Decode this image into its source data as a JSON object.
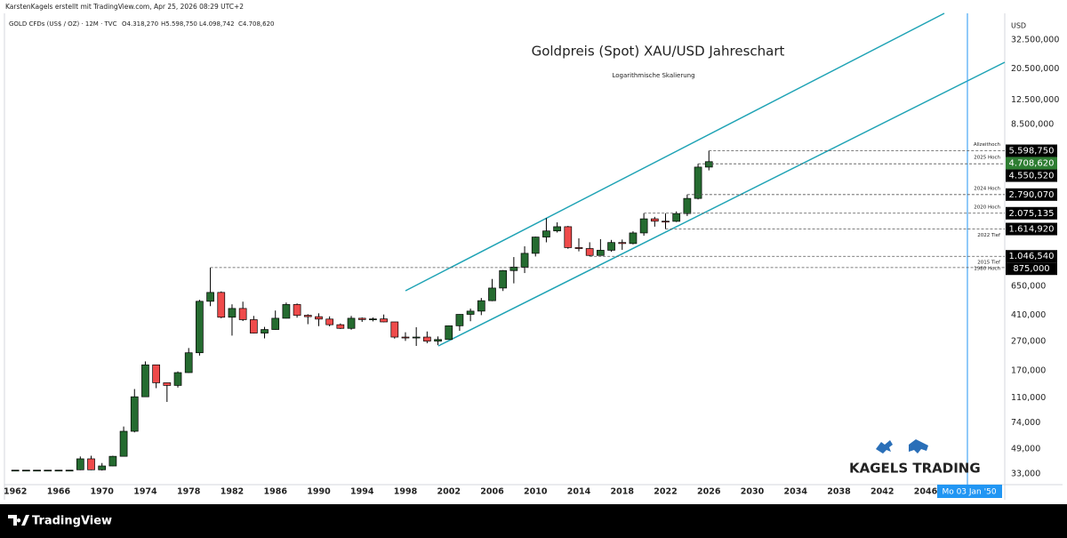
{
  "header": "KarstenKagels erstellt mit TradingView.com, Apr 25, 2026 08:29 UTC+2",
  "footer": {
    "brand": "TradingView"
  },
  "logo": "KAGELS TRADING",
  "chart_data": {
    "type": "candlestick",
    "title": "Goldpreis (Spot) XAU/USD Jahreschart",
    "subtitle": "Logarithmische Skalierung",
    "symbol": "GOLD CFDs (US$ / OZ) · 12M · TVC",
    "ohlc_labels": [
      "O4.318,270",
      "H5.598,750",
      "L4.098,742",
      "C4.708,620"
    ],
    "currency": "USD",
    "log_scale": true,
    "grid": false,
    "up_color": "#256b30",
    "down_color": "#ef4b4b",
    "x": [
      1962,
      1963,
      1964,
      1965,
      1966,
      1967,
      1968,
      1969,
      1970,
      1971,
      1972,
      1973,
      1974,
      1975,
      1976,
      1977,
      1978,
      1979,
      1980,
      1981,
      1982,
      1983,
      1984,
      1985,
      1986,
      1987,
      1988,
      1989,
      1990,
      1991,
      1992,
      1993,
      1994,
      1995,
      1996,
      1997,
      1998,
      1999,
      2000,
      2001,
      2002,
      2003,
      2004,
      2005,
      2006,
      2007,
      2008,
      2009,
      2010,
      2011,
      2012,
      2013,
      2014,
      2015,
      2016,
      2017,
      2018,
      2019,
      2020,
      2021,
      2022,
      2023,
      2024,
      2025,
      2026
    ],
    "open": [
      35,
      35,
      35,
      35,
      35,
      35,
      35.2,
      41.9,
      35.2,
      37.4,
      43.6,
      64.9,
      112.3,
      186.5,
      140.3,
      134.5,
      164.9,
      226,
      512,
      589.5,
      397.5,
      456.9,
      382.4,
      309,
      327,
      391,
      486.5,
      410,
      401,
      386,
      353,
      333,
      391,
      383,
      387,
      369,
      290,
      288,
      290,
      272,
      279,
      347,
      416,
      438,
      517,
      632,
      834,
      882,
      1097,
      1421,
      1566,
      1675,
      1202,
      1184,
      1061,
      1152,
      1303,
      1282,
      1517,
      1898,
      1829,
      1824,
      2063,
      2625,
      4318.27
    ],
    "high": [
      35,
      35,
      35,
      35,
      35,
      35,
      43.5,
      44,
      39.2,
      44,
      70,
      127,
      197,
      186.5,
      140.3,
      168,
      243.7,
      524,
      875,
      599,
      488,
      509,
      406,
      341,
      442,
      502,
      495,
      417,
      423,
      403,
      360,
      406,
      396,
      396,
      415,
      369,
      313,
      339,
      317,
      293,
      349,
      417,
      456,
      540,
      730,
      841,
      1034,
      1227,
      1431,
      1920,
      1795,
      1697,
      1392,
      1308,
      1375,
      1358,
      1366,
      1557,
      2075.135,
      1959,
      2070,
      2135,
      2790.07,
      4550.52,
      5598.75
    ],
    "low": [
      35,
      35,
      35,
      35,
      35,
      35,
      35,
      35,
      34.8,
      37.3,
      43.5,
      63.8,
      112,
      128.8,
      103.5,
      130,
      164,
      216,
      474,
      391,
      296.8,
      374,
      307,
      284,
      326,
      390,
      395,
      356,
      345,
      344,
      330,
      326,
      369,
      372,
      367,
      283,
      273,
      252,
      263,
      255,
      278,
      320,
      373,
      411,
      513,
      603,
      681,
      802,
      1044,
      1307,
      1527,
      1180,
      1132,
      1046.54,
      1060,
      1124,
      1160,
      1266,
      1451,
      1677,
      1614.92,
      1804,
      1984,
      2584,
      4098.742
    ],
    "close": [
      35,
      35,
      35,
      35,
      35,
      35,
      41.9,
      35.2,
      37.4,
      43.6,
      64.9,
      112.3,
      186.5,
      140.3,
      134.5,
      164.9,
      226,
      512,
      589.5,
      397.5,
      456.9,
      382.4,
      309,
      327,
      391,
      486.5,
      410,
      401,
      386,
      353,
      333,
      391,
      383,
      387,
      369,
      290,
      288,
      290,
      272,
      279,
      347,
      416,
      438,
      517,
      632,
      834,
      882,
      1097,
      1421,
      1566,
      1675,
      1202,
      1184,
      1061,
      1152,
      1303,
      1282,
      1517,
      1898,
      1829,
      1824,
      2063,
      2625,
      4318.27,
      4708.62
    ],
    "xlim": [
      1961,
      2053.3
    ],
    "xticks": [
      1962,
      1966,
      1970,
      1974,
      1978,
      1982,
      1986,
      1990,
      1994,
      1998,
      2002,
      2006,
      2010,
      2014,
      2018,
      2022,
      2026,
      2030,
      2034,
      2038,
      2042,
      2046
    ],
    "ylim": [
      27.8,
      49700
    ],
    "yticks": [
      {
        "value": 33,
        "label": "33,000"
      },
      {
        "value": 49,
        "label": "49,000"
      },
      {
        "value": 74,
        "label": "74,000"
      },
      {
        "value": 110,
        "label": "110,000"
      },
      {
        "value": 170,
        "label": "170,000"
      },
      {
        "value": 270,
        "label": "270,000"
      },
      {
        "value": 410,
        "label": "410,000"
      },
      {
        "value": 650,
        "label": "650,000"
      },
      {
        "value": 8500,
        "label": "8.500,000"
      },
      {
        "value": 12500,
        "label": "12.500,000"
      },
      {
        "value": 20500,
        "label": "20.500,000"
      },
      {
        "value": 32500,
        "label": "32.500,000"
      }
    ],
    "levels": [
      {
        "note": "Allzeithoch",
        "value": 5598.75,
        "label": "5.598,750"
      },
      {
        "value": 4708.62,
        "label": "4.708,620"
      },
      {
        "note": "2025 Hoch",
        "value": 4550.52,
        "label": "4.550,520"
      },
      {
        "note": "2024 Hoch",
        "value": 2790.07,
        "label": "2.790,070"
      },
      {
        "note": "2020 Hoch",
        "value": 2075.135,
        "label": "2.075,135"
      },
      {
        "note": "2022 Tief",
        "value": 1614.92,
        "label": "1.614,920"
      },
      {
        "note": "2015 Tief",
        "value": 1046.54,
        "label": "1.046,540"
      },
      {
        "note": "1980 Hoch",
        "value": 875,
        "label": "875,000"
      }
    ],
    "cursor_label": "Mo 03 Jan '50"
  }
}
